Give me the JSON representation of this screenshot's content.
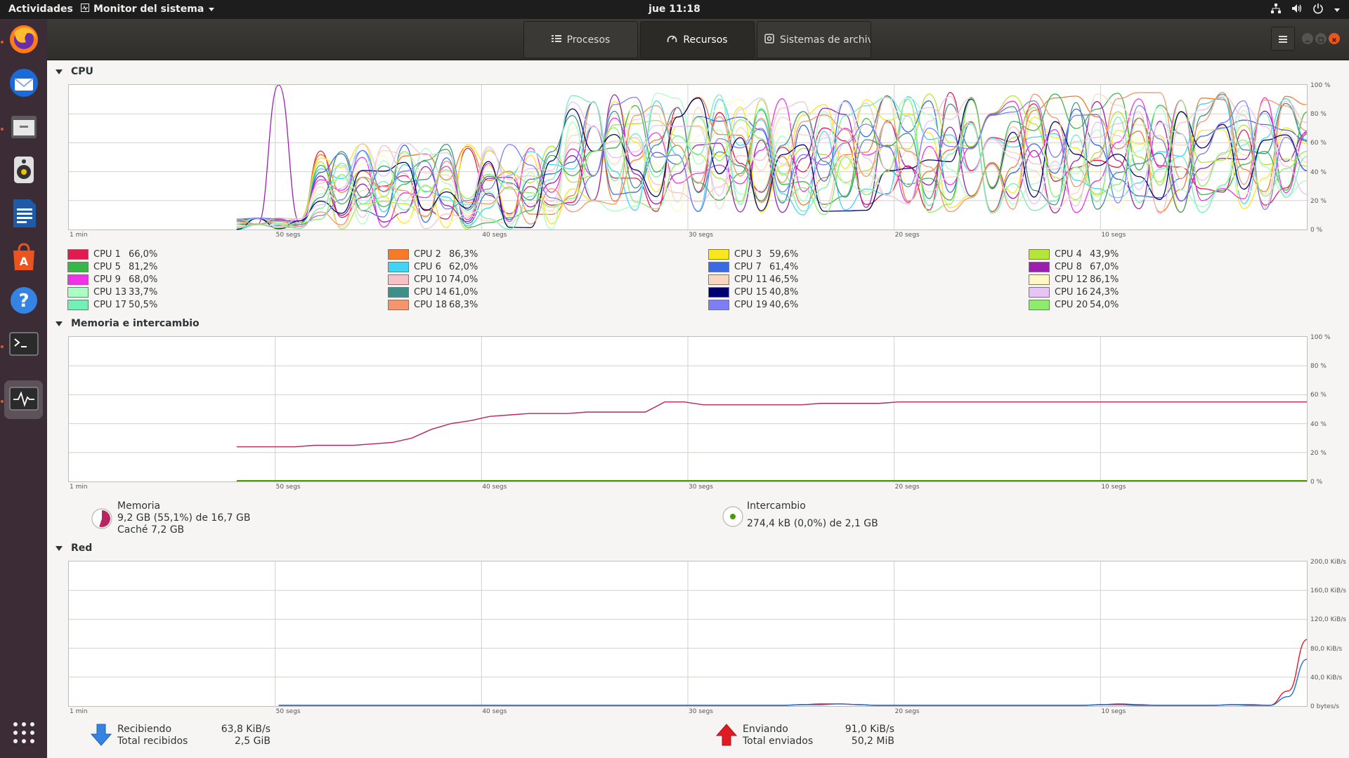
{
  "topbar": {
    "activities": "Actividades",
    "app_name": "Monitor del sistema",
    "clock": "jue 11:18"
  },
  "dock": {
    "items": [
      {
        "name": "firefox-icon",
        "active": false,
        "running": true
      },
      {
        "name": "thunderbird-icon",
        "active": false,
        "running": false
      },
      {
        "name": "files-icon",
        "active": false,
        "running": true
      },
      {
        "name": "rhythmbox-icon",
        "active": false,
        "running": false
      },
      {
        "name": "writer-icon",
        "active": false,
        "running": false
      },
      {
        "name": "software-icon",
        "active": false,
        "running": false
      },
      {
        "name": "help-icon",
        "active": false,
        "running": false
      },
      {
        "name": "terminal-icon",
        "active": false,
        "running": true
      },
      {
        "name": "system-monitor-icon",
        "active": true,
        "running": true
      }
    ]
  },
  "header": {
    "tabs": [
      {
        "label": "Procesos",
        "active": false
      },
      {
        "label": "Recursos",
        "active": true
      },
      {
        "label": "Sistemas de archiv",
        "active": false
      }
    ]
  },
  "sections": {
    "cpu": "CPU",
    "memory": "Memoria e intercambio",
    "network": "Red"
  },
  "time_ticks": [
    "1 min",
    "50 segs",
    "40 segs",
    "30 segs",
    "20 segs",
    "10 segs"
  ],
  "percent_ticks": [
    "100 %",
    "80 %",
    "60 %",
    "40 %",
    "20 %",
    "0 %"
  ],
  "network_ticks": [
    "200,0 KiB/s",
    "160,0 KiB/s",
    "120,0 KiB/s",
    "80,0 KiB/s",
    "40,0 KiB/s",
    "0 bytes/s"
  ],
  "cpus": [
    {
      "label": "CPU 1",
      "value": "66,0%",
      "color": "#e01b4f"
    },
    {
      "label": "CPU 2",
      "value": "86,3%",
      "color": "#f57a2a"
    },
    {
      "label": "CPU 3",
      "value": "59,6%",
      "color": "#f8e71c"
    },
    {
      "label": "CPU 4",
      "value": "43,9%",
      "color": "#b5e53a"
    },
    {
      "label": "CPU 5",
      "value": "81,2%",
      "color": "#3bb54a"
    },
    {
      "label": "CPU 6",
      "value": "62,0%",
      "color": "#42d4f4"
    },
    {
      "label": "CPU 7",
      "value": "61,4%",
      "color": "#3a6be0"
    },
    {
      "label": "CPU 8",
      "value": "67,0%",
      "color": "#9b1fae"
    },
    {
      "label": "CPU 9",
      "value": "68,0%",
      "color": "#f032e6"
    },
    {
      "label": "CPU 10",
      "value": "74,0%",
      "color": "#f6c1c7"
    },
    {
      "label": "CPU 11",
      "value": "46,5%",
      "color": "#f9d6bf"
    },
    {
      "label": "CPU 12",
      "value": "86,1%",
      "color": "#fff7c4"
    },
    {
      "label": "CPU 13",
      "value": "33,7%",
      "color": "#aaffc3"
    },
    {
      "label": "CPU 14",
      "value": "61,0%",
      "color": "#3f8f88"
    },
    {
      "label": "CPU 15",
      "value": "40,8%",
      "color": "#000070"
    },
    {
      "label": "CPU 16",
      "value": "24,3%",
      "color": "#e6c4f5"
    },
    {
      "label": "CPU 17",
      "value": "50,5%",
      "color": "#72f0b8"
    },
    {
      "label": "CPU 18",
      "value": "68,3%",
      "color": "#f4956b"
    },
    {
      "label": "CPU 19",
      "value": "40,6%",
      "color": "#7d7df5"
    },
    {
      "label": "CPU 20",
      "value": "54,0%",
      "color": "#8ded6a"
    }
  ],
  "memory": {
    "label": "Memoria",
    "usage": "9,2 GB (55,1%) de 16,7 GB",
    "cache": "Caché 7,2 GB",
    "percent": 55.1,
    "color": "#b8255f",
    "history": [
      24,
      24,
      24,
      24,
      25,
      25,
      25,
      26,
      27,
      30,
      36,
      40,
      42,
      45,
      46,
      47,
      47,
      47,
      48,
      48,
      48,
      48,
      55,
      55,
      53,
      53,
      53,
      53,
      53,
      53,
      54,
      54,
      54,
      54,
      55,
      55,
      55,
      55,
      55,
      55,
      55,
      55,
      55,
      55,
      55,
      55,
      55,
      55,
      55,
      55,
      55,
      55,
      55,
      55,
      55,
      55
    ]
  },
  "swap": {
    "label": "Intercambio",
    "usage": "274,4 kB (0,0%) de 2,1 GB",
    "percent": 0.0,
    "color": "#4e9a06"
  },
  "network": {
    "receiving_label": "Recibiendo",
    "receiving": "63,8 KiB/s",
    "total_received_label": "Total recibidos",
    "total_received": "2,5 GiB",
    "sending_label": "Enviando",
    "sending": "91,0 KiB/s",
    "total_sent_label": "Total enviados",
    "total_sent": "50,2 MiB",
    "recv_color": "#1c71d8",
    "send_color": "#e01b24",
    "recv_history_kib": [
      0,
      0,
      0,
      0,
      0,
      0,
      0,
      0,
      0,
      0,
      0,
      0,
      0,
      0,
      0,
      0,
      0,
      0,
      0,
      0,
      0,
      0,
      0,
      0,
      0,
      0,
      0,
      0,
      1,
      1,
      2,
      1,
      0,
      0,
      0,
      0,
      0,
      0,
      0,
      0,
      0,
      0,
      0,
      0,
      1,
      1,
      0,
      0,
      0,
      0,
      0,
      1,
      0,
      0,
      12,
      63.8
    ],
    "send_history_kib": [
      0,
      0,
      0,
      0,
      0,
      0,
      0,
      0,
      0,
      0,
      0,
      0,
      0,
      0,
      0,
      0,
      0,
      0,
      0,
      0,
      0,
      0,
      0,
      0,
      0,
      0,
      0,
      0,
      1,
      2,
      2,
      1,
      0,
      0,
      0,
      0,
      0,
      0,
      0,
      0,
      0,
      0,
      0,
      0,
      1,
      2,
      1,
      0,
      0,
      0,
      0,
      1,
      1,
      0,
      20,
      91.0
    ]
  }
}
